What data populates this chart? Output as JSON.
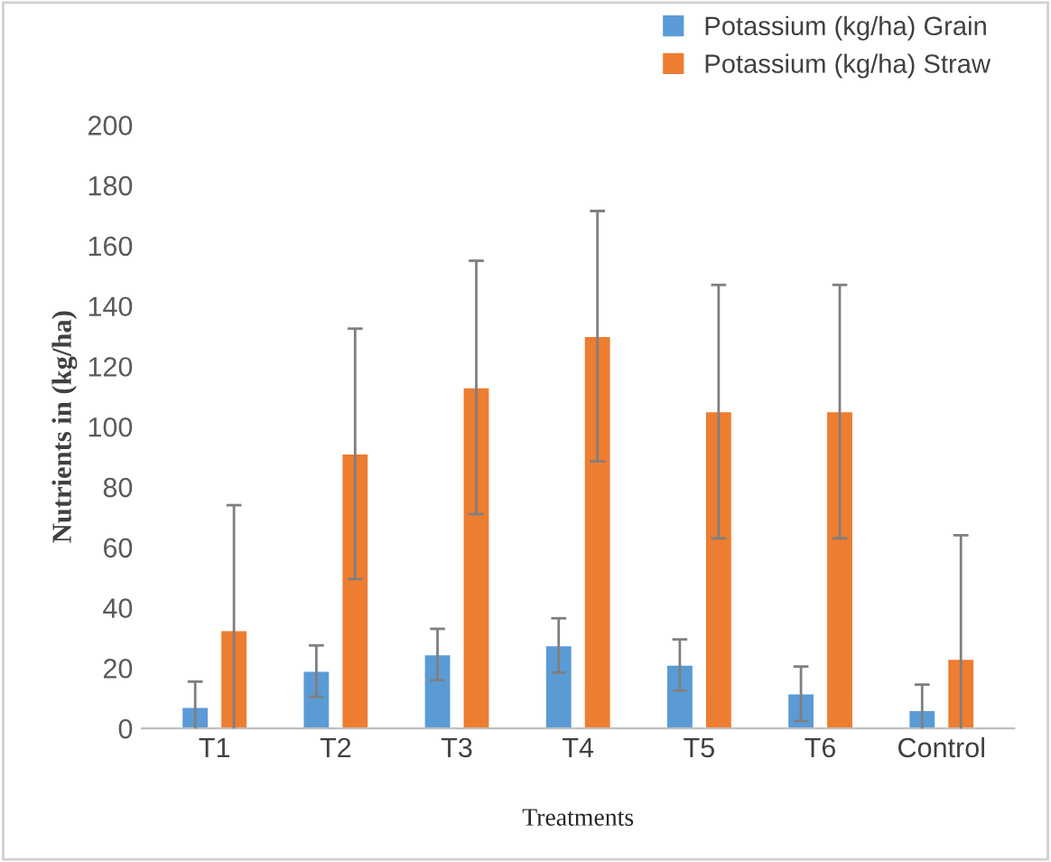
{
  "chart_data": {
    "type": "bar",
    "xlabel": "Treatments",
    "ylabel": "Nutrients in (kg/ha)",
    "categories": [
      "T1",
      "T2",
      "T3",
      "T4",
      "T5",
      "T6",
      "Control"
    ],
    "series": [
      {
        "name": "Potassium (kg/ha) Grain",
        "color": "#5b9bd5",
        "values": [
          7,
          19,
          24.5,
          27.5,
          21,
          11.5,
          6
        ],
        "errors": [
          8.5,
          8.5,
          8.5,
          9,
          8.5,
          9,
          8.5
        ]
      },
      {
        "name": "Potassium (kg/ha) Straw",
        "color": "#ed7d31",
        "values": [
          32.5,
          91,
          113,
          130,
          105,
          105,
          23
        ],
        "errors": [
          41.5,
          41.5,
          42,
          41.5,
          42,
          42,
          41
        ]
      }
    ],
    "ylim": [
      0,
      200
    ],
    "yticks": [
      0,
      20,
      40,
      60,
      80,
      100,
      120,
      140,
      160,
      180,
      200
    ],
    "grid": false,
    "legend": "top right"
  }
}
